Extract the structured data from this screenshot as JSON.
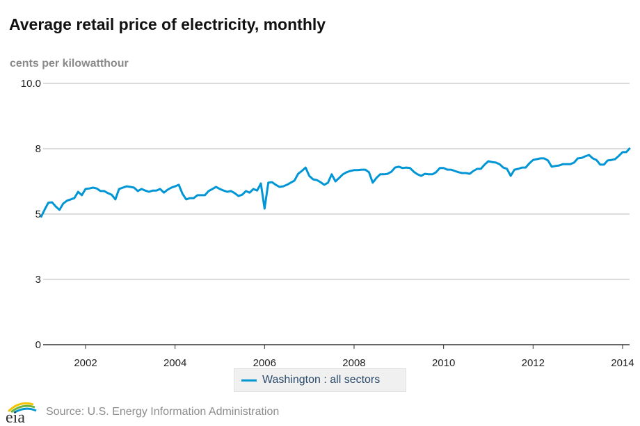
{
  "chart_data": {
    "type": "line",
    "title": "Average retail price of electricity, monthly",
    "ylabel": "cents per kilowatthour",
    "xlabel": "",
    "ylim": [
      0,
      10
    ],
    "y_ticks": [
      0,
      2.5,
      5,
      7.5,
      10
    ],
    "y_tick_labels": [
      "0",
      "3",
      "5",
      "8",
      "10.0"
    ],
    "x_tick_labels": [
      "2002",
      "2004",
      "2006",
      "2008",
      "2010",
      "2012",
      "2014"
    ],
    "grid": true,
    "legend_position": "bottom-center",
    "series": [
      {
        "name": "Washington : all sectors",
        "color": "#0096d6",
        "x_start": "2001-01",
        "frequency": "monthly",
        "values": [
          4.87,
          5.16,
          5.43,
          5.45,
          5.29,
          5.16,
          5.4,
          5.51,
          5.56,
          5.61,
          5.85,
          5.72,
          5.96,
          5.98,
          6.01,
          5.98,
          5.88,
          5.88,
          5.8,
          5.74,
          5.56,
          5.96,
          6.01,
          6.06,
          6.04,
          6.01,
          5.88,
          5.96,
          5.9,
          5.85,
          5.9,
          5.9,
          5.96,
          5.82,
          5.93,
          6.01,
          6.06,
          6.12,
          5.77,
          5.56,
          5.61,
          5.61,
          5.72,
          5.72,
          5.72,
          5.88,
          5.96,
          6.04,
          5.96,
          5.9,
          5.85,
          5.88,
          5.8,
          5.69,
          5.74,
          5.88,
          5.82,
          5.96,
          5.9,
          6.17,
          5.21,
          6.2,
          6.22,
          6.12,
          6.04,
          6.06,
          6.12,
          6.2,
          6.28,
          6.54,
          6.65,
          6.78,
          6.46,
          6.33,
          6.3,
          6.22,
          6.12,
          6.2,
          6.52,
          6.25,
          6.38,
          6.52,
          6.6,
          6.65,
          6.68,
          6.68,
          6.7,
          6.7,
          6.6,
          6.2,
          6.38,
          6.52,
          6.52,
          6.54,
          6.62,
          6.78,
          6.81,
          6.76,
          6.78,
          6.76,
          6.62,
          6.52,
          6.46,
          6.54,
          6.52,
          6.52,
          6.6,
          6.76,
          6.76,
          6.7,
          6.7,
          6.65,
          6.6,
          6.57,
          6.57,
          6.54,
          6.65,
          6.73,
          6.73,
          6.89,
          7.02,
          6.99,
          6.97,
          6.91,
          6.78,
          6.73,
          6.46,
          6.7,
          6.73,
          6.78,
          6.78,
          6.94,
          7.07,
          7.1,
          7.13,
          7.13,
          7.05,
          6.81,
          6.84,
          6.86,
          6.91,
          6.91,
          6.91,
          6.97,
          7.13,
          7.15,
          7.21,
          7.26,
          7.13,
          7.07,
          6.89,
          6.89,
          7.05,
          7.07,
          7.1,
          7.23,
          7.37,
          7.37,
          7.53
        ]
      }
    ]
  },
  "source": "Source: U.S. Energy Information Administration",
  "logo_text": "eia"
}
